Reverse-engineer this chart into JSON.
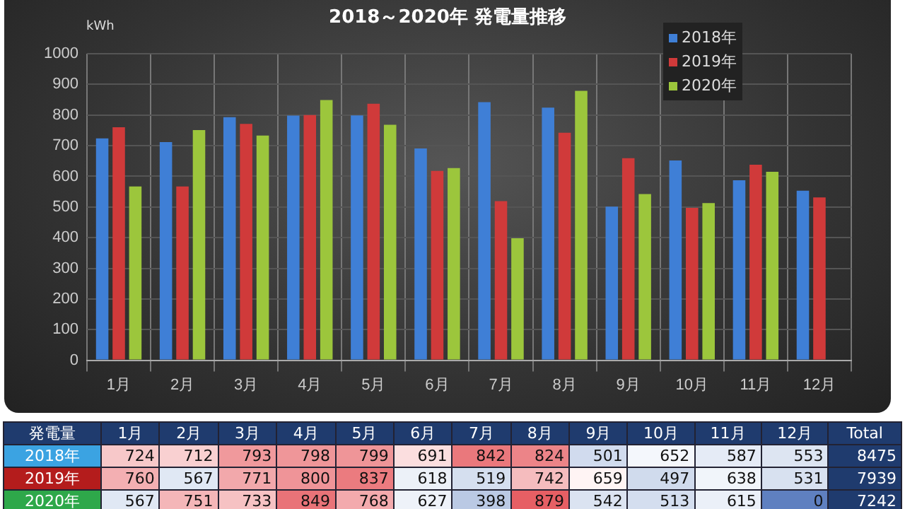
{
  "chart_data": {
    "type": "bar",
    "title": "2018～2020年 発電量推移",
    "ylabel": "kWh",
    "categories": [
      "1月",
      "2月",
      "3月",
      "4月",
      "5月",
      "6月",
      "7月",
      "8月",
      "9月",
      "10月",
      "11月",
      "12月"
    ],
    "series": [
      {
        "name": "2018年",
        "color": "#3f7fd6",
        "values": [
          724,
          712,
          793,
          798,
          799,
          691,
          842,
          824,
          501,
          652,
          587,
          553
        ]
      },
      {
        "name": "2019年",
        "color": "#d03a3a",
        "values": [
          760,
          567,
          771,
          800,
          837,
          618,
          519,
          742,
          659,
          497,
          638,
          531
        ]
      },
      {
        "name": "2020年",
        "color": "#9cc63c",
        "values": [
          567,
          751,
          733,
          849,
          768,
          627,
          398,
          879,
          542,
          513,
          615,
          0
        ]
      }
    ],
    "ylim": [
      0,
      1000
    ],
    "yticks": [
      0,
      100,
      200,
      300,
      400,
      500,
      600,
      700,
      800,
      900,
      1000
    ],
    "grid": true,
    "legend": "top right",
    "data_labels": true,
    "annotations": [
      "発電量",
      "Total",
      "8475",
      "7939",
      "7242"
    ]
  }
}
